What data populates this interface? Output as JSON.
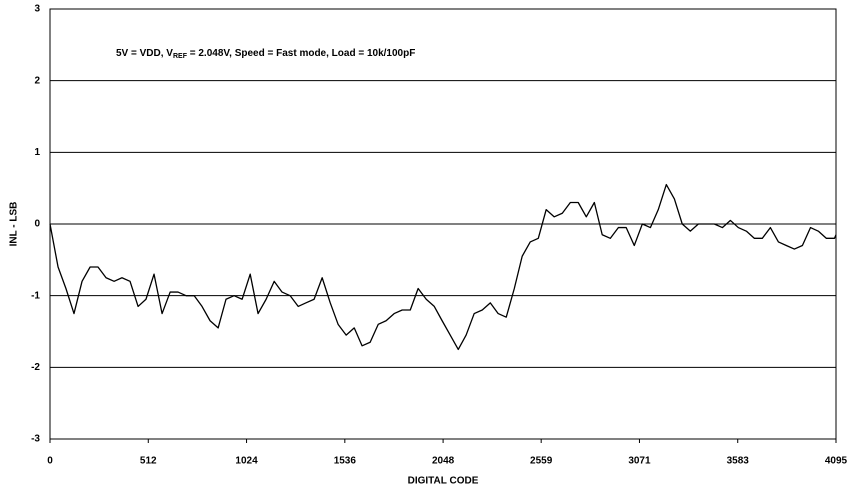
{
  "chart_data": {
    "type": "line",
    "annotation": [
      "5V = VDD, V",
      "REF",
      " =  2.048V, Speed = Fast mode, Load = 10k/100pF"
    ],
    "x_label": "DIGITAL CODE",
    "y_label": "INL - LSB",
    "color": "#000000",
    "x": [
      0,
      42,
      83,
      125,
      167,
      209,
      250,
      292,
      334,
      375,
      417,
      459,
      500,
      542,
      584,
      626,
      667,
      709,
      751,
      792,
      834,
      876,
      917,
      959,
      1001,
      1043,
      1084,
      1126,
      1168,
      1209,
      1251,
      1293,
      1334,
      1376,
      1418,
      1460,
      1501,
      1543,
      1585,
      1626,
      1668,
      1710,
      1751,
      1793,
      1835,
      1877,
      1918,
      1960,
      2002,
      2043,
      2085,
      2127,
      2168,
      2210,
      2252,
      2294,
      2335,
      2377,
      2419,
      2460,
      2502,
      2544,
      2585,
      2627,
      2669,
      2711,
      2752,
      2794,
      2836,
      2877,
      2919,
      2961,
      3002,
      3044,
      3086,
      3128,
      3169,
      3211,
      3253,
      3294,
      3336,
      3378,
      3419,
      3461,
      3503,
      3545,
      3586,
      3628,
      3670,
      3711,
      3753,
      3795,
      3836,
      3878,
      3920,
      3962,
      4003,
      4045,
      4087,
      4095
    ],
    "values": [
      0,
      -0.6,
      -0.9,
      -1.25,
      -0.8,
      -0.6,
      -0.6,
      -0.75,
      -0.8,
      -0.75,
      -0.8,
      -1.15,
      -1.05,
      -0.7,
      -1.25,
      -0.95,
      -0.95,
      -1.0,
      -1.0,
      -1.15,
      -1.35,
      -1.45,
      -1.05,
      -1.0,
      -1.05,
      -0.7,
      -1.25,
      -1.05,
      -0.8,
      -0.95,
      -1.0,
      -1.15,
      -1.1,
      -1.05,
      -0.75,
      -1.1,
      -1.4,
      -1.55,
      -1.45,
      -1.7,
      -1.65,
      -1.4,
      -1.35,
      -1.25,
      -1.2,
      -1.2,
      -0.9,
      -1.05,
      -1.15,
      -1.35,
      -1.55,
      -1.75,
      -1.55,
      -1.25,
      -1.2,
      -1.1,
      -1.25,
      -1.3,
      -0.9,
      -0.45,
      -0.25,
      -0.2,
      0.2,
      0.1,
      0.15,
      0.3,
      0.3,
      0.1,
      0.3,
      -0.15,
      -0.2,
      -0.05,
      -0.05,
      -0.3,
      0.0,
      -0.05,
      0.2,
      0.55,
      0.35,
      0.0,
      -0.1,
      0,
      0,
      0,
      -0.05,
      0.05,
      -0.05,
      -0.1,
      -0.2,
      -0.2,
      -0.05,
      -0.25,
      -0.3,
      -0.35,
      -0.3,
      -0.05,
      -0.1,
      -0.2,
      -0.2,
      -0.15
    ],
    "xlim": [
      0,
      4095
    ],
    "xticks": [
      0,
      512,
      1024,
      1536,
      2048,
      2559,
      3071,
      3583,
      4095
    ],
    "ylim": [
      -3,
      3
    ],
    "yticks": [
      -3,
      -2,
      -1,
      0,
      1,
      2,
      3
    ],
    "grid": true
  }
}
